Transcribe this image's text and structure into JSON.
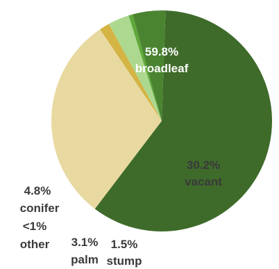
{
  "chart_data": {
    "type": "pie",
    "title": "",
    "slices": [
      {
        "name": "broadleaf",
        "value": 59.8,
        "value_label": "59.8%",
        "color": "#3e6b2a",
        "label_color": "#ffffff"
      },
      {
        "name": "vacant",
        "value": 30.2,
        "value_label": "30.2%",
        "color": "#e8d9a0",
        "label_color": "#3a3a3a"
      },
      {
        "name": "stump",
        "value": 1.5,
        "value_label": "1.5%",
        "color": "#d4b444",
        "label_color": "#3a3a3a"
      },
      {
        "name": "palm",
        "value": 3.1,
        "value_label": "3.1%",
        "color": "#acd88f",
        "label_color": "#3a3a3a"
      },
      {
        "name": "other",
        "value": 0.6,
        "value_label": "<1%",
        "color": "#5ea83a",
        "label_color": "#3a3a3a"
      },
      {
        "name": "conifer",
        "value": 4.8,
        "value_label": "4.8%",
        "color": "#4a8431",
        "label_color": "#3a3a3a"
      }
    ],
    "start_angle_deg": 88,
    "direction": "clockwise",
    "legend": "none",
    "label_position": "inside for large slices, outside for small slices"
  }
}
